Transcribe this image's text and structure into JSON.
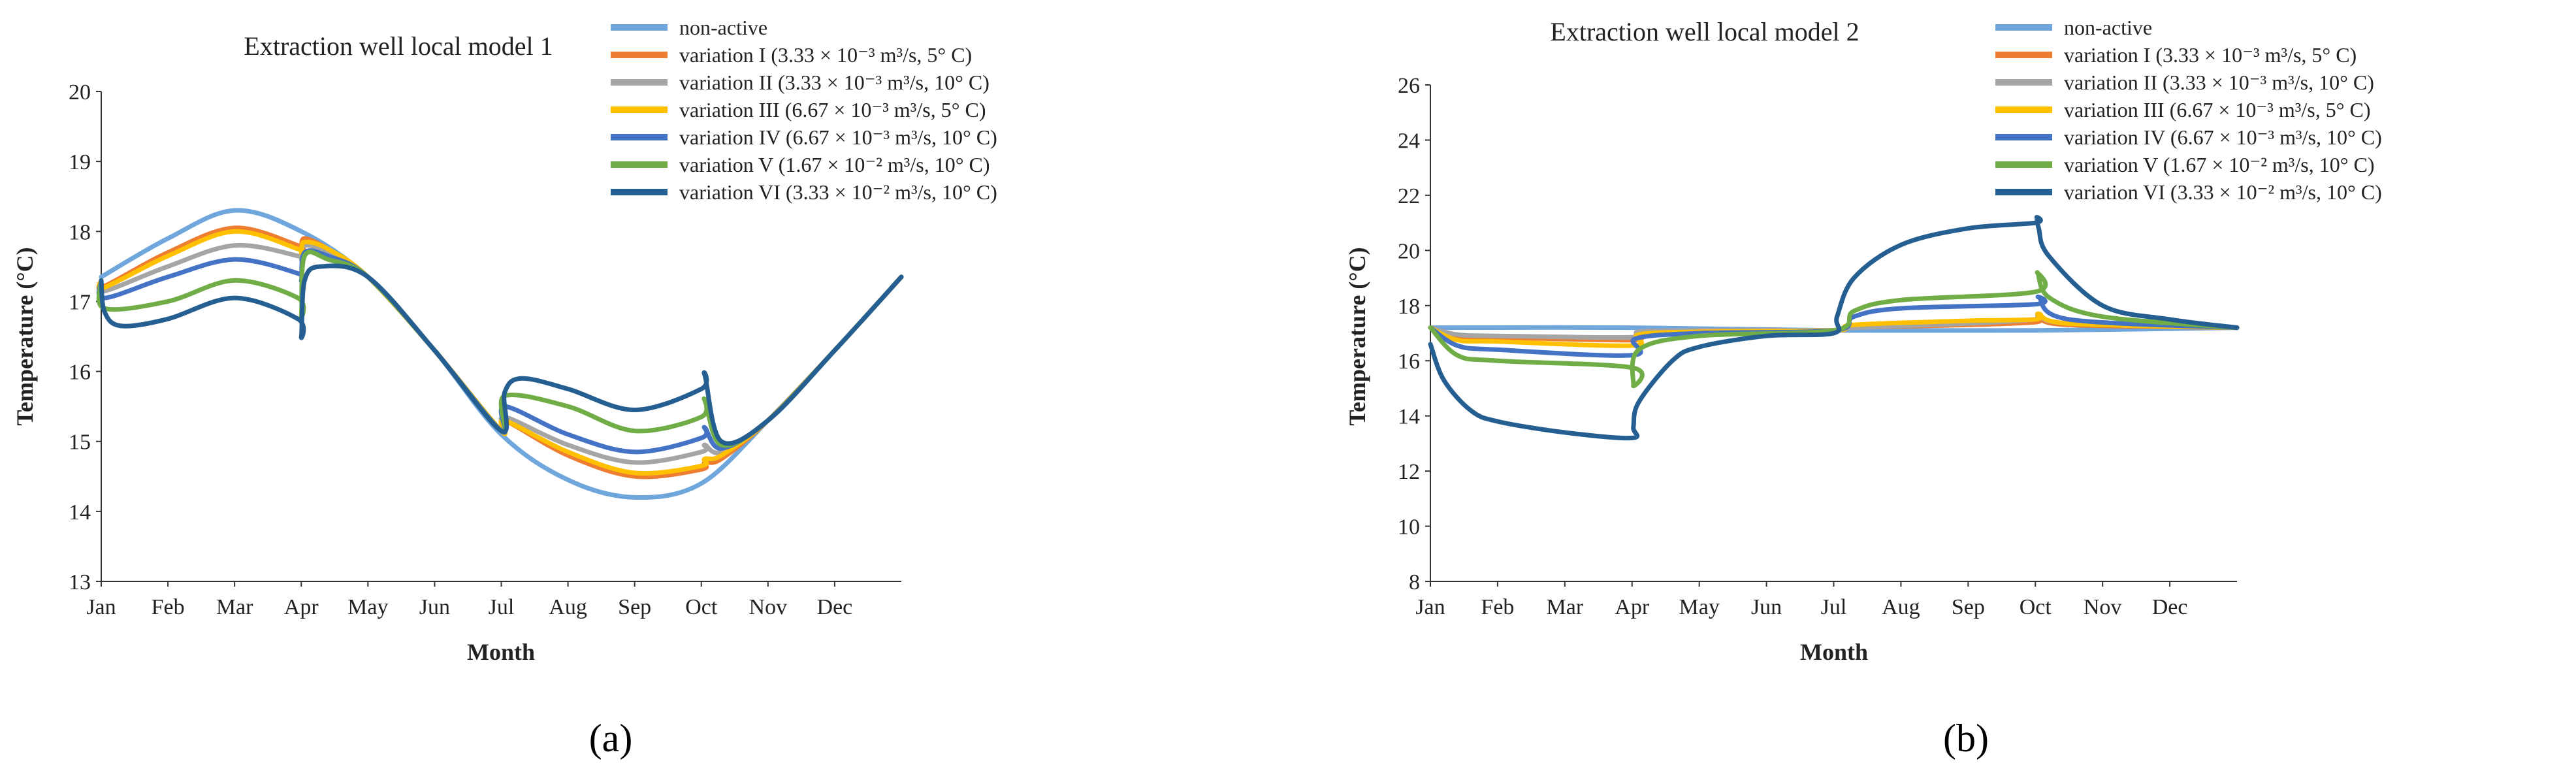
{
  "chart_data": [
    {
      "type": "line",
      "panel_label": "(a)",
      "title": "Extraction well local model 1",
      "xlabel": "Month",
      "ylabel": "Temperature (°C)",
      "ylim": [
        13,
        20
      ],
      "yticks": [
        13,
        14,
        15,
        16,
        17,
        18,
        19,
        20
      ],
      "categories": [
        "Jan",
        "Feb",
        "Mar",
        "Apr",
        "May",
        "Jun",
        "Jul",
        "Aug",
        "Sep",
        "Oct",
        "Nov",
        "Dec"
      ],
      "legend_position": "top-right",
      "series": [
        {
          "name": "non-active",
          "color": "#6fa6dc",
          "knots": [
            [
              0,
              17.35
            ],
            [
              1,
              17.9
            ],
            [
              2,
              18.3
            ],
            [
              3,
              18.0
            ],
            [
              4,
              17.35
            ],
            [
              5,
              16.3
            ],
            [
              6,
              15.1
            ],
            [
              7,
              14.45
            ],
            [
              8,
              14.2
            ],
            [
              9,
              14.4
            ],
            [
              10,
              15.3
            ],
            [
              11,
              16.3
            ],
            [
              12,
              17.35
            ]
          ]
        },
        {
          "name": "variation I (3.33 × 10⁻³ m³/s, 5° C)",
          "color": "#ed7d31",
          "knots": [
            [
              0,
              17.3
            ],
            [
              0.05,
              17.22
            ],
            [
              1,
              17.7
            ],
            [
              2,
              18.05
            ],
            [
              2.95,
              17.8
            ],
            [
              3,
              17.75
            ],
            [
              3.05,
              17.9
            ],
            [
              3.4,
              17.75
            ],
            [
              4,
              17.35
            ],
            [
              5,
              16.3
            ],
            [
              6,
              15.15
            ],
            [
              6.05,
              15.3
            ],
            [
              7,
              14.8
            ],
            [
              8,
              14.5
            ],
            [
              9,
              14.6
            ],
            [
              9.05,
              14.7
            ],
            [
              9.3,
              14.75
            ],
            [
              10,
              15.3
            ],
            [
              11,
              16.3
            ],
            [
              12,
              17.35
            ]
          ]
        },
        {
          "name": "variation II (3.33 × 10⁻³ m³/s, 10° C)",
          "color": "#a5a5a5",
          "knots": [
            [
              0,
              17.3
            ],
            [
              0.05,
              17.15
            ],
            [
              1,
              17.5
            ],
            [
              2,
              17.8
            ],
            [
              2.95,
              17.65
            ],
            [
              3,
              17.6
            ],
            [
              3.05,
              17.8
            ],
            [
              3.4,
              17.7
            ],
            [
              4,
              17.35
            ],
            [
              5,
              16.3
            ],
            [
              6,
              15.15
            ],
            [
              6.05,
              15.35
            ],
            [
              7,
              14.95
            ],
            [
              8,
              14.7
            ],
            [
              9,
              14.85
            ],
            [
              9.05,
              14.95
            ],
            [
              9.3,
              14.85
            ],
            [
              10,
              15.3
            ],
            [
              11,
              16.3
            ],
            [
              12,
              17.35
            ]
          ]
        },
        {
          "name": "variation III (6.67 × 10⁻³ m³/s, 5° C)",
          "color": "#ffc000",
          "knots": [
            [
              0,
              17.3
            ],
            [
              0.05,
              17.2
            ],
            [
              1,
              17.65
            ],
            [
              2,
              18.0
            ],
            [
              2.95,
              17.75
            ],
            [
              3,
              17.7
            ],
            [
              3.05,
              17.85
            ],
            [
              3.4,
              17.75
            ],
            [
              4,
              17.35
            ],
            [
              5,
              16.3
            ],
            [
              6,
              15.15
            ],
            [
              6.05,
              15.3
            ],
            [
              7,
              14.85
            ],
            [
              8,
              14.55
            ],
            [
              9,
              14.65
            ],
            [
              9.05,
              14.75
            ],
            [
              9.3,
              14.8
            ],
            [
              10,
              15.3
            ],
            [
              11,
              16.3
            ],
            [
              12,
              17.35
            ]
          ]
        },
        {
          "name": "variation IV (6.67 × 10⁻³ m³/s, 10° C)",
          "color": "#4472c4",
          "knots": [
            [
              0,
              17.3
            ],
            [
              0.05,
              17.05
            ],
            [
              1,
              17.35
            ],
            [
              2,
              17.6
            ],
            [
              2.95,
              17.4
            ],
            [
              3,
              17.3
            ],
            [
              3.05,
              17.7
            ],
            [
              3.4,
              17.65
            ],
            [
              4,
              17.35
            ],
            [
              5,
              16.3
            ],
            [
              6,
              15.15
            ],
            [
              6.05,
              15.5
            ],
            [
              7,
              15.1
            ],
            [
              8,
              14.85
            ],
            [
              9,
              15.05
            ],
            [
              9.05,
              15.2
            ],
            [
              9.3,
              14.9
            ],
            [
              10,
              15.3
            ],
            [
              11,
              16.3
            ],
            [
              12,
              17.35
            ]
          ]
        },
        {
          "name": "variation V (1.67 × 10⁻² m³/s, 10° C)",
          "color": "#70ad47",
          "knots": [
            [
              0,
              17.3
            ],
            [
              0.05,
              16.9
            ],
            [
              1,
              17.0
            ],
            [
              2,
              17.3
            ],
            [
              2.95,
              17.05
            ],
            [
              3,
              16.8
            ],
            [
              3.05,
              17.65
            ],
            [
              3.4,
              17.6
            ],
            [
              4,
              17.35
            ],
            [
              5,
              16.3
            ],
            [
              6,
              15.15
            ],
            [
              6.05,
              15.65
            ],
            [
              7,
              15.5
            ],
            [
              8,
              15.15
            ],
            [
              9,
              15.35
            ],
            [
              9.05,
              15.6
            ],
            [
              9.3,
              14.95
            ],
            [
              10,
              15.3
            ],
            [
              11,
              16.3
            ],
            [
              12,
              17.35
            ]
          ]
        },
        {
          "name": "variation VI (3.33 × 10⁻² m³/s, 10° C)",
          "color": "#255e91",
          "knots": [
            [
              0,
              17.3
            ],
            [
              0.05,
              16.85
            ],
            [
              0.3,
              16.65
            ],
            [
              1,
              16.75
            ],
            [
              2,
              17.05
            ],
            [
              2.95,
              16.75
            ],
            [
              3,
              16.5
            ],
            [
              3.05,
              17.3
            ],
            [
              3.3,
              17.5
            ],
            [
              4,
              17.35
            ],
            [
              5,
              16.3
            ],
            [
              6,
              15.15
            ],
            [
              6.05,
              15.7
            ],
            [
              6.3,
              15.9
            ],
            [
              7,
              15.75
            ],
            [
              8,
              15.45
            ],
            [
              9,
              15.75
            ],
            [
              9.05,
              15.95
            ],
            [
              9.3,
              15.0
            ],
            [
              10,
              15.3
            ],
            [
              11,
              16.3
            ],
            [
              12,
              17.35
            ]
          ]
        }
      ]
    },
    {
      "type": "line",
      "panel_label": "(b)",
      "title": "Extraction well local model 2",
      "xlabel": "Month",
      "ylabel": "Temperature (°C)",
      "ylim": [
        8,
        26
      ],
      "yticks": [
        8,
        10,
        12,
        14,
        16,
        18,
        20,
        22,
        24,
        26
      ],
      "categories": [
        "Jan",
        "Feb",
        "Mar",
        "Apr",
        "May",
        "Jun",
        "Jul",
        "Aug",
        "Sep",
        "Oct",
        "Nov",
        "Dec"
      ],
      "legend_position": "top-right",
      "series": [
        {
          "name": "non-active",
          "color": "#6fa6dc",
          "knots": [
            [
              0,
              17.2
            ],
            [
              3,
              17.2
            ],
            [
              6,
              17.1
            ],
            [
              9,
              17.1
            ],
            [
              12,
              17.2
            ]
          ]
        },
        {
          "name": "variation I (3.33 × 10⁻³ m³/s, 5° C)",
          "color": "#ed7d31",
          "knots": [
            [
              0,
              17.2
            ],
            [
              0.4,
              16.9
            ],
            [
              1,
              16.85
            ],
            [
              3,
              16.75
            ],
            [
              3.1,
              17.0
            ],
            [
              4,
              17.1
            ],
            [
              6,
              17.1
            ],
            [
              6.3,
              17.2
            ],
            [
              8,
              17.3
            ],
            [
              9,
              17.4
            ],
            [
              9.05,
              17.55
            ],
            [
              9.5,
              17.3
            ],
            [
              12,
              17.2
            ]
          ]
        },
        {
          "name": "variation II (3.33 × 10⁻³ m³/s, 10° C)",
          "color": "#a5a5a5",
          "knots": [
            [
              0,
              17.2
            ],
            [
              0.4,
              16.95
            ],
            [
              1,
              16.9
            ],
            [
              3,
              16.85
            ],
            [
              3.1,
              17.05
            ],
            [
              4,
              17.1
            ],
            [
              6,
              17.1
            ],
            [
              6.3,
              17.2
            ],
            [
              8,
              17.35
            ],
            [
              9,
              17.5
            ],
            [
              9.05,
              17.65
            ],
            [
              9.5,
              17.35
            ],
            [
              12,
              17.2
            ]
          ]
        },
        {
          "name": "variation III (6.67 × 10⁻³ m³/s, 5° C)",
          "color": "#ffc000",
          "knots": [
            [
              0,
              17.2
            ],
            [
              0.4,
              16.75
            ],
            [
              1,
              16.7
            ],
            [
              3,
              16.55
            ],
            [
              3.1,
              16.95
            ],
            [
              4,
              17.05
            ],
            [
              6,
              17.1
            ],
            [
              6.3,
              17.3
            ],
            [
              8,
              17.45
            ],
            [
              9,
              17.5
            ],
            [
              9.05,
              17.7
            ],
            [
              9.5,
              17.35
            ],
            [
              12,
              17.2
            ]
          ]
        },
        {
          "name": "variation IV (6.67 × 10⁻³ m³/s, 10° C)",
          "color": "#4472c4",
          "knots": [
            [
              0,
              17.2
            ],
            [
              0.4,
              16.55
            ],
            [
              1,
              16.4
            ],
            [
              3,
              16.2
            ],
            [
              3.05,
              16.8
            ],
            [
              4,
              17.0
            ],
            [
              6,
              17.1
            ],
            [
              6.3,
              17.6
            ],
            [
              7,
              17.9
            ],
            [
              9,
              18.05
            ],
            [
              9.05,
              18.3
            ],
            [
              9.5,
              17.5
            ],
            [
              12,
              17.2
            ]
          ]
        },
        {
          "name": "variation V (1.67 × 10⁻² m³/s, 10° C)",
          "color": "#70ad47",
          "knots": [
            [
              0,
              17.2
            ],
            [
              0.4,
              16.2
            ],
            [
              1,
              16.0
            ],
            [
              3,
              15.75
            ],
            [
              3.02,
              15.1
            ],
            [
              3.1,
              16.4
            ],
            [
              4,
              16.9
            ],
            [
              6,
              17.1
            ],
            [
              6.3,
              17.8
            ],
            [
              7,
              18.2
            ],
            [
              9,
              18.5
            ],
            [
              9.03,
              19.2
            ],
            [
              9.2,
              18.3
            ],
            [
              10,
              17.6
            ],
            [
              12,
              17.2
            ]
          ]
        },
        {
          "name": "variation VI (3.33 × 10⁻² m³/s, 10° C)",
          "color": "#255e91",
          "knots": [
            [
              0,
              16.6
            ],
            [
              0.2,
              15.3
            ],
            [
              0.6,
              14.2
            ],
            [
              1,
              13.8
            ],
            [
              2,
              13.4
            ],
            [
              3,
              13.2
            ],
            [
              3.02,
              13.6
            ],
            [
              3.1,
              14.5
            ],
            [
              3.6,
              16.0
            ],
            [
              4,
              16.5
            ],
            [
              5,
              16.9
            ],
            [
              6,
              17.0
            ],
            [
              6.05,
              17.6
            ],
            [
              6.3,
              19.0
            ],
            [
              7,
              20.2
            ],
            [
              8,
              20.8
            ],
            [
              9,
              21.0
            ],
            [
              9.02,
              21.2
            ],
            [
              9.05,
              20.8
            ],
            [
              9.2,
              19.8
            ],
            [
              10,
              18.0
            ],
            [
              11,
              17.5
            ],
            [
              12,
              17.2
            ]
          ]
        }
      ]
    }
  ]
}
